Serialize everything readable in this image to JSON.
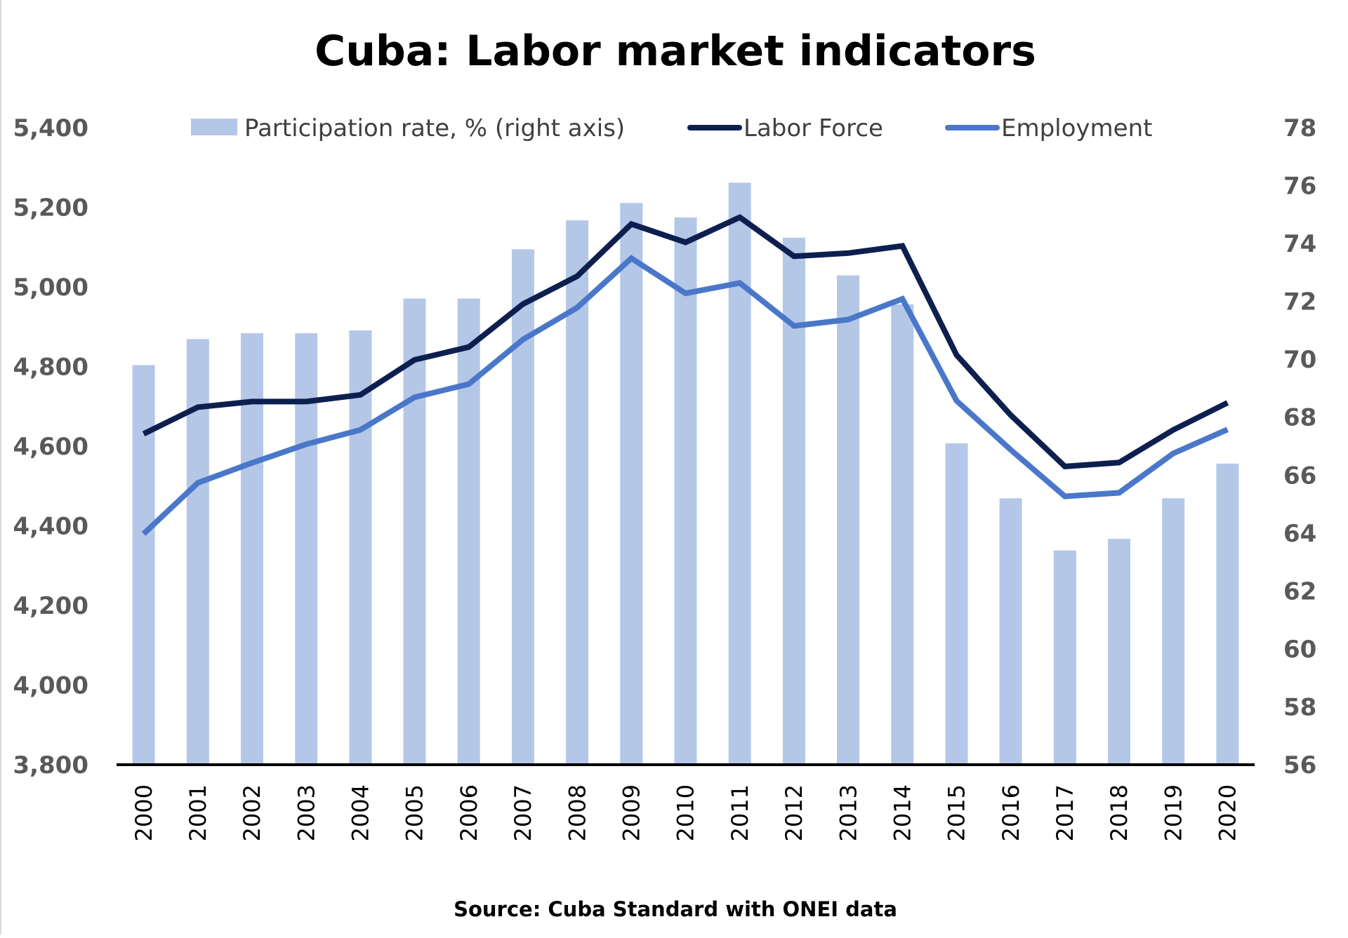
{
  "chart_data": {
    "type": "bar",
    "title": "Cuba: Labor market indicators",
    "source": "Source: Cuba Standard with ONEI data",
    "categories": [
      "2000",
      "2001",
      "2002",
      "2003",
      "2004",
      "2005",
      "2006",
      "2007",
      "2008",
      "2009",
      "2010",
      "2011",
      "2012",
      "2013",
      "2014",
      "2015",
      "2016",
      "2017",
      "2018",
      "2019",
      "2020"
    ],
    "y_left": {
      "range": [
        3800,
        5400
      ],
      "ticks": [
        "3,800",
        "4,000",
        "4,200",
        "4,400",
        "4,600",
        "4,800",
        "5,000",
        "5,200",
        "5,400"
      ]
    },
    "y_right": {
      "range": [
        56,
        78
      ],
      "ticks": [
        "56",
        "58",
        "60",
        "62",
        "64",
        "66",
        "68",
        "70",
        "72",
        "74",
        "76",
        "78"
      ]
    },
    "series": [
      {
        "name": "Participation rate, % (right axis)",
        "kind": "bar",
        "axis": "right",
        "color": "#b4c7e7",
        "values": [
          69.8,
          70.7,
          70.9,
          70.9,
          71.0,
          72.1,
          72.1,
          73.8,
          74.8,
          75.4,
          74.9,
          76.1,
          74.2,
          72.9,
          71.9,
          67.1,
          65.2,
          63.4,
          63.8,
          65.2,
          66.4
        ]
      },
      {
        "name": "Labor Force",
        "kind": "line",
        "axis": "left",
        "color": "#0d1f4f",
        "values": [
          4631,
          4698,
          4712,
          4712,
          4729,
          4817,
          4849,
          4957,
          5027,
          5158,
          5112,
          5175,
          5077,
          5085,
          5103,
          4829,
          4678,
          4549,
          4559,
          4641,
          4709
        ]
      },
      {
        "name": "Employment",
        "kind": "line",
        "axis": "left",
        "color": "#4a77c9",
        "values": [
          4380,
          4508,
          4558,
          4605,
          4641,
          4723,
          4756,
          4868,
          4948,
          5072,
          4984,
          5010,
          4902,
          4918,
          4970,
          4714,
          4591,
          4474,
          4483,
          4582,
          4642
        ]
      }
    ],
    "grid": false,
    "legend": "top"
  }
}
